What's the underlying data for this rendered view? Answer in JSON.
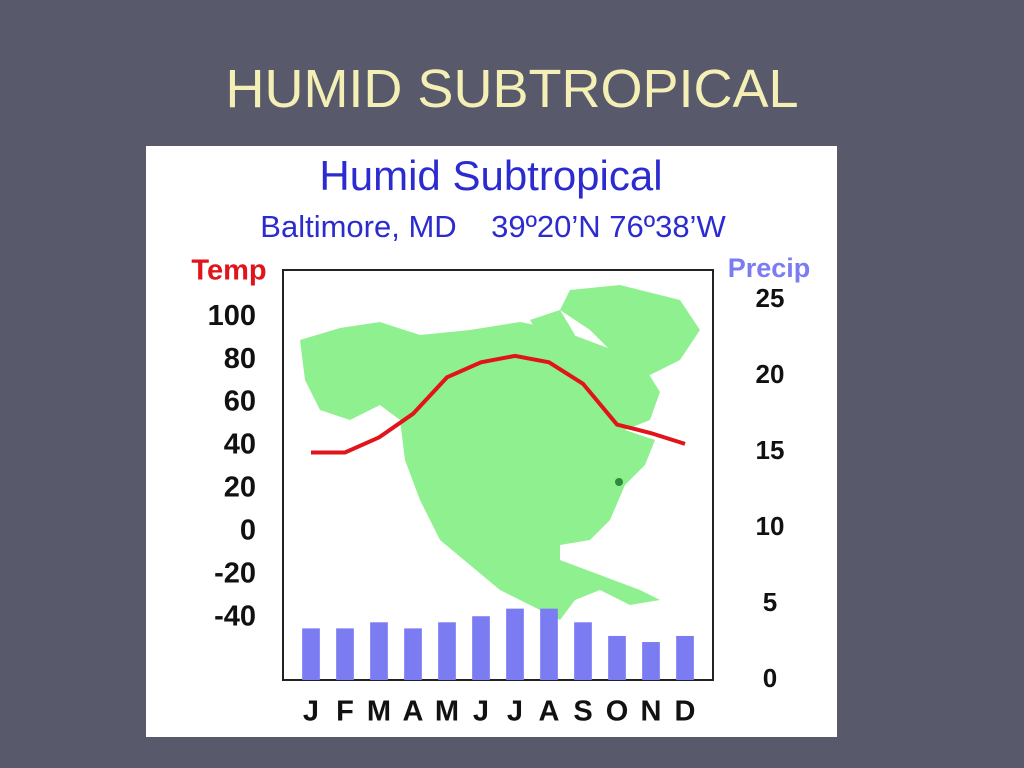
{
  "slide": {
    "title": "HUMID SUBTROPICAL"
  },
  "chart_data": {
    "type": "combo",
    "title": "Humid Subtropical",
    "subtitle": "Baltimore, MD    39º20’N 76º38’W",
    "categories": [
      "J",
      "F",
      "M",
      "A",
      "M",
      "J",
      "J",
      "A",
      "S",
      "O",
      "N",
      "D"
    ],
    "series": [
      {
        "name": "Temp",
        "type": "line",
        "color": "#e0141a",
        "values": [
          37,
          37,
          44,
          55,
          72,
          79,
          82,
          79,
          69,
          50,
          46,
          41
        ]
      },
      {
        "name": "Precip",
        "type": "bar",
        "axis": "y2",
        "color": "#7c7cf2",
        "values": [
          3.4,
          3.4,
          3.8,
          3.4,
          3.8,
          4.2,
          4.7,
          4.7,
          3.8,
          2.9,
          2.5,
          2.9
        ]
      }
    ],
    "ylim": [
      -69,
      122
    ],
    "yticks": [
      100,
      80,
      60,
      40,
      20,
      0,
      -20,
      -40
    ],
    "y2lim": [
      0,
      27
    ],
    "y2ticks": [
      25,
      20,
      15,
      10,
      5,
      0
    ]
  }
}
